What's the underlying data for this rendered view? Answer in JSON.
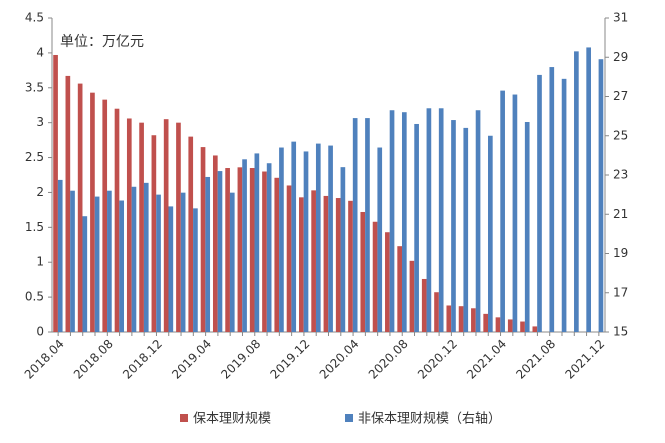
{
  "chart_data": {
    "type": "bar",
    "annotation": "单位：万亿元",
    "categories": [
      "2018.04",
      null,
      null,
      null,
      "2018.08",
      null,
      null,
      null,
      "2018.12",
      null,
      null,
      null,
      "2019.04",
      null,
      null,
      null,
      "2019.08",
      null,
      null,
      null,
      "2019.12",
      null,
      null,
      null,
      "2020.04",
      null,
      null,
      null,
      "2020.08",
      null,
      null,
      null,
      "2020.12",
      null,
      null,
      null,
      "2021.04",
      null,
      null,
      null,
      "2021.08",
      null,
      null,
      null,
      "2021.12"
    ],
    "series": [
      {
        "name": "保本理财规模",
        "color": "#c0504d",
        "axis": "y",
        "values": [
          3.97,
          3.67,
          3.56,
          3.43,
          3.33,
          3.2,
          3.06,
          3.0,
          2.82,
          3.05,
          3.0,
          2.8,
          2.65,
          2.53,
          2.35,
          2.36,
          2.35,
          2.3,
          2.21,
          2.1,
          1.93,
          2.03,
          1.95,
          1.92,
          1.88,
          1.72,
          1.58,
          1.43,
          1.23,
          1.02,
          0.76,
          0.57,
          0.38,
          0.37,
          0.34,
          0.26,
          0.21,
          0.18,
          0.15,
          0.08,
          0,
          0,
          0,
          0,
          0
        ]
      },
      {
        "name": "非保本理财规模（右轴）",
        "color": "#4f81bd",
        "axis": "y2",
        "values": [
          22.75,
          22.2,
          20.9,
          21.9,
          22.2,
          21.7,
          22.4,
          22.6,
          22.0,
          21.4,
          22.1,
          21.3,
          22.9,
          23.2,
          22.1,
          23.8,
          24.1,
          23.6,
          24.4,
          24.7,
          24.2,
          24.6,
          24.5,
          23.4,
          25.9,
          25.9,
          24.4,
          26.3,
          26.2,
          25.6,
          26.4,
          26.4,
          25.8,
          25.4,
          26.3,
          25.0,
          27.3,
          27.1,
          25.7,
          28.1,
          28.5,
          27.9,
          29.3,
          29.5,
          28.9
        ]
      }
    ],
    "ylim": [
      0,
      4.5
    ],
    "yticks": [
      0,
      0.5,
      1,
      1.5,
      2,
      2.5,
      3,
      3.5,
      4,
      4.5
    ],
    "y2lim": [
      15,
      31
    ],
    "y2ticks": [
      15,
      17,
      19,
      21,
      23,
      25,
      27,
      29,
      31
    ],
    "legend": "bottom",
    "grid": false
  }
}
